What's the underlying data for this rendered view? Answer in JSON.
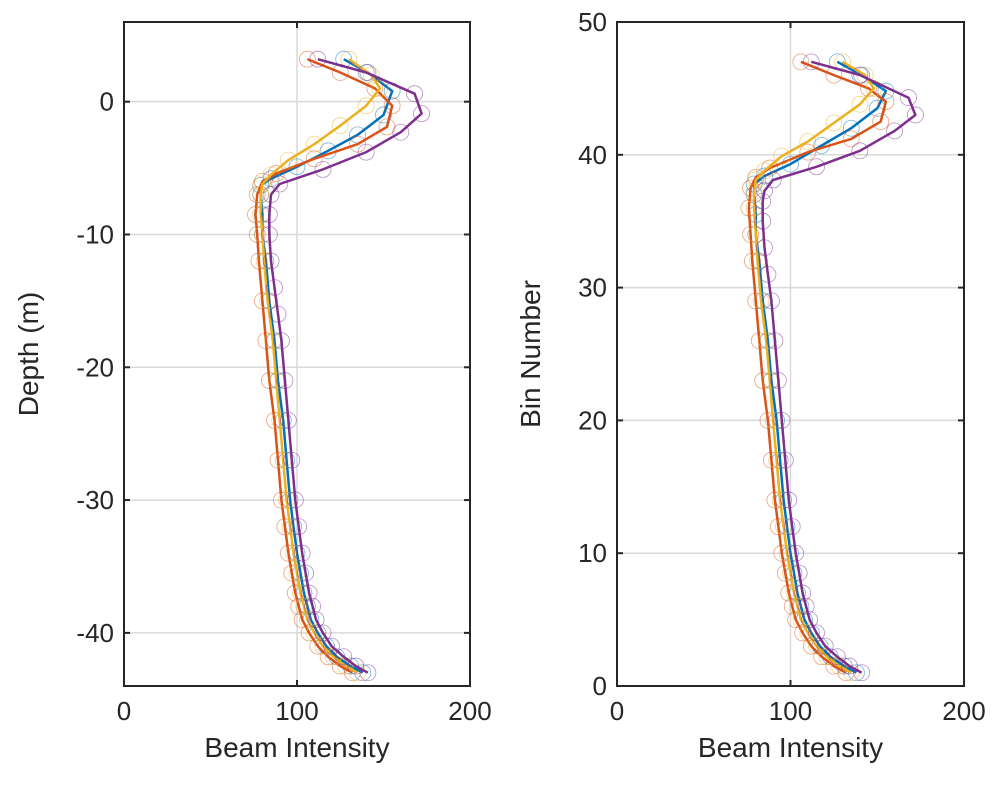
{
  "chart_data": [
    {
      "type": "line",
      "xlabel": "Beam Intensity",
      "ylabel": "Depth (m)",
      "xlim": [
        0,
        200
      ],
      "ylim": [
        -44,
        6
      ],
      "xticks": [
        0,
        100,
        200
      ],
      "yticks": [
        0,
        -10,
        -20,
        -30,
        -40
      ],
      "grid": true,
      "legend": null,
      "series": [
        {
          "color": "#0072BD",
          "x": [
            127,
            141,
            155,
            150,
            135,
            118,
            100,
            85,
            79,
            79,
            80,
            80,
            82,
            84,
            87,
            89,
            92,
            94,
            96,
            98,
            100,
            102,
            104,
            106,
            108,
            112,
            117,
            123,
            131,
            138
          ],
          "y": [
            3.2,
            2.2,
            0.8,
            -1.0,
            -2.5,
            -3.7,
            -4.9,
            -5.8,
            -6.3,
            -7.0,
            -8.5,
            -10,
            -12,
            -15,
            -18,
            -21,
            -24,
            -27,
            -30,
            -32,
            -34,
            -35.5,
            -37,
            -38,
            -39,
            -40,
            -41,
            -41.8,
            -42.5,
            -43
          ]
        },
        {
          "color": "#D95319",
          "x": [
            106,
            125,
            145,
            155,
            152,
            135,
            110,
            88,
            80,
            77,
            76,
            77,
            78,
            80,
            82,
            84,
            87,
            89,
            91,
            93,
            95,
            97,
            99,
            101,
            103,
            107,
            112,
            118,
            125,
            132
          ],
          "y": [
            3.2,
            2.2,
            1.0,
            -0.3,
            -1.9,
            -3.2,
            -4.3,
            -5.4,
            -6.0,
            -7.0,
            -8.5,
            -10,
            -12,
            -15,
            -18,
            -21,
            -24,
            -27,
            -30,
            -32,
            -34,
            -35.5,
            -37,
            -38,
            -39,
            -40,
            -41,
            -41.8,
            -42.5,
            -43
          ]
        },
        {
          "color": "#EDB120",
          "x": [
            130,
            143,
            148,
            140,
            125,
            110,
            95,
            85,
            80,
            79,
            79,
            80,
            81,
            83,
            86,
            88,
            90,
            92,
            94,
            96,
            98,
            100,
            102,
            104,
            106,
            110,
            115,
            121,
            128,
            135
          ],
          "y": [
            3.2,
            2.0,
            1.0,
            -0.3,
            -1.8,
            -3.2,
            -4.4,
            -5.5,
            -6.2,
            -7.0,
            -8.5,
            -10,
            -12,
            -15,
            -18,
            -21,
            -24,
            -27,
            -30,
            -32,
            -34,
            -35.5,
            -37,
            -38,
            -39,
            -40,
            -41,
            -41.8,
            -42.5,
            -43
          ]
        },
        {
          "color": "#7E2F8E",
          "x": [
            112,
            140,
            168,
            172,
            160,
            140,
            115,
            90,
            85,
            84,
            84,
            85,
            87,
            89,
            91,
            93,
            95,
            97,
            99,
            101,
            103,
            105,
            107,
            109,
            111,
            115,
            120,
            127,
            134,
            141
          ],
          "y": [
            3.2,
            2.2,
            0.6,
            -0.9,
            -2.3,
            -3.8,
            -5.1,
            -6.2,
            -7.0,
            -8.5,
            -10,
            -12,
            -14,
            -16,
            -18,
            -21,
            -24,
            -27,
            -30,
            -32,
            -34,
            -35.5,
            -37,
            -38,
            -39,
            -40,
            -41,
            -41.8,
            -42.5,
            -43
          ]
        }
      ]
    },
    {
      "type": "line",
      "xlabel": "Beam Intensity",
      "ylabel": "Bin Number",
      "xlim": [
        0,
        200
      ],
      "ylim": [
        0,
        50
      ],
      "xticks": [
        0,
        100,
        200
      ],
      "yticks": [
        0,
        10,
        20,
        30,
        40,
        50
      ],
      "grid": true,
      "legend": null,
      "series": [
        {
          "color": "#0072BD",
          "x": [
            127,
            141,
            155,
            150,
            135,
            118,
            100,
            85,
            79,
            79,
            80,
            80,
            82,
            84,
            87,
            89,
            92,
            94,
            96,
            98,
            100,
            102,
            104,
            106,
            108,
            112,
            117,
            123,
            131,
            138
          ],
          "y": [
            47,
            46,
            44.8,
            43.5,
            42,
            40.7,
            39.3,
            38.4,
            37.8,
            37,
            35.5,
            34,
            32,
            29,
            26,
            23,
            20,
            17,
            14,
            12,
            10,
            8.5,
            7,
            6,
            5,
            4,
            3,
            2.2,
            1.5,
            1
          ]
        },
        {
          "color": "#D95319",
          "x": [
            106,
            125,
            145,
            155,
            152,
            135,
            110,
            88,
            80,
            77,
            76,
            77,
            78,
            80,
            82,
            84,
            87,
            89,
            91,
            93,
            95,
            97,
            99,
            101,
            103,
            107,
            112,
            118,
            125,
            132
          ],
          "y": [
            47,
            46,
            45,
            44,
            42.5,
            41.2,
            40.2,
            39,
            38.3,
            37.5,
            36,
            34,
            32,
            29,
            26,
            23,
            20,
            17,
            14,
            12,
            10,
            8.5,
            7,
            6,
            5,
            4,
            3,
            2.2,
            1.5,
            1
          ]
        },
        {
          "color": "#EDB120",
          "x": [
            130,
            143,
            148,
            140,
            125,
            110,
            95,
            85,
            80,
            79,
            79,
            80,
            81,
            83,
            86,
            88,
            90,
            92,
            94,
            96,
            98,
            100,
            102,
            104,
            106,
            110,
            115,
            121,
            128,
            135
          ],
          "y": [
            47,
            46,
            45,
            43.8,
            42.4,
            41,
            39.9,
            38.8,
            38.1,
            37.2,
            36,
            34,
            32,
            29,
            26,
            23,
            20,
            17,
            14,
            12,
            10,
            8.5,
            7,
            6,
            5,
            4,
            3,
            2.2,
            1.5,
            1
          ]
        },
        {
          "color": "#7E2F8E",
          "x": [
            112,
            140,
            168,
            172,
            160,
            140,
            115,
            90,
            85,
            84,
            84,
            85,
            87,
            89,
            91,
            93,
            95,
            97,
            99,
            101,
            103,
            105,
            107,
            109,
            111,
            115,
            120,
            127,
            134,
            141
          ],
          "y": [
            47,
            46,
            44.3,
            43,
            41.8,
            40.3,
            39.1,
            38.1,
            37.3,
            36.5,
            35,
            33,
            31,
            29,
            26,
            23,
            20,
            17,
            14,
            12,
            10,
            8.5,
            7,
            6,
            5,
            4,
            3,
            2.2,
            1.5,
            1
          ]
        }
      ]
    }
  ]
}
